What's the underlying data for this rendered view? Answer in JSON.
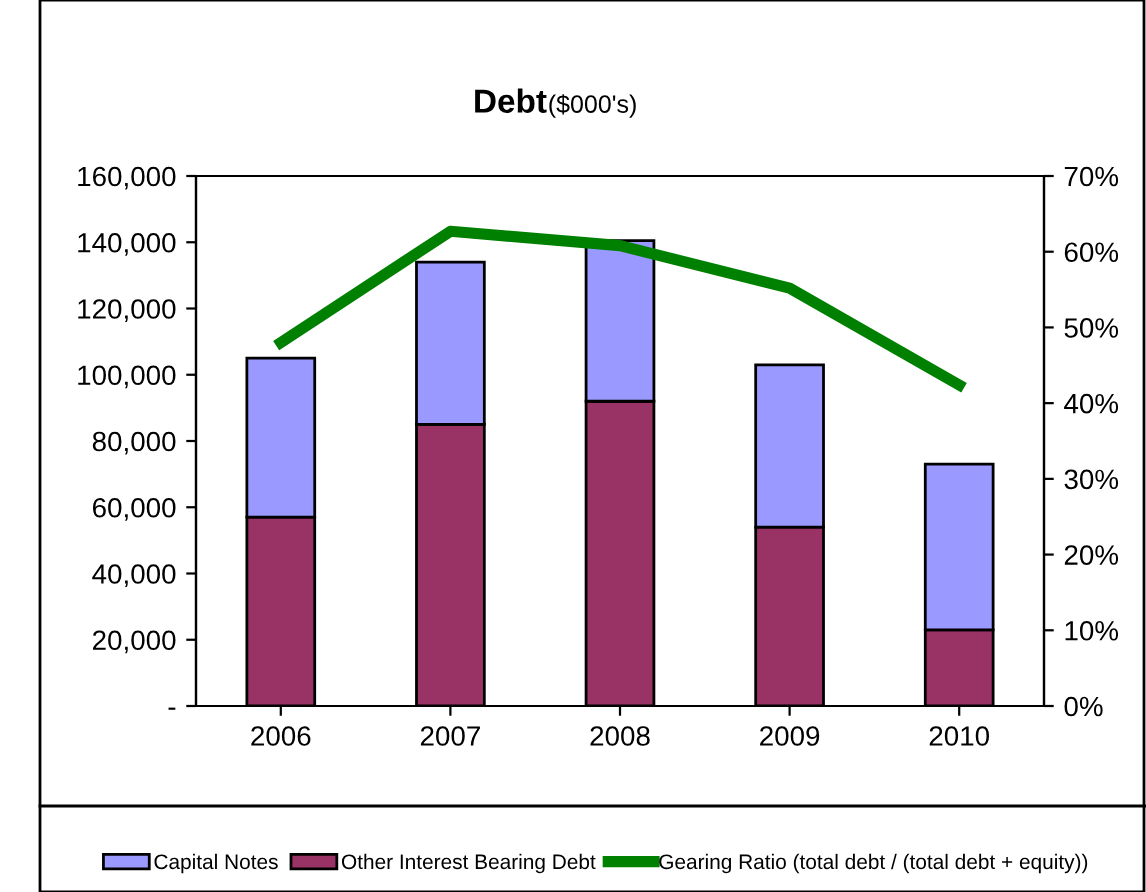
{
  "chart_data": {
    "type": "bar",
    "title": "Debt",
    "subtitle": "($000's)",
    "stacked": true,
    "categories": [
      "2006",
      "2007",
      "2008",
      "2009",
      "2010"
    ],
    "series": [
      {
        "name": "Other Interest Bearing Debt",
        "color": "#993366",
        "values": [
          57000,
          85000,
          92000,
          54000,
          23000
        ]
      },
      {
        "name": "Capital Notes",
        "color": "#9999ff",
        "values": [
          48000,
          49000,
          48500,
          49000,
          50000
        ]
      },
      {
        "name": "Gearing Ratio (total debt / (total debt + equity))",
        "type": "line",
        "axis": "y2",
        "color": "#008000",
        "values": [
          48,
          62.7,
          60.8,
          55.2,
          42.4
        ]
      }
    ],
    "ylim": [
      0,
      160000
    ],
    "yticks": [
      {
        "value": 0,
        "label": "-"
      },
      {
        "value": 20000,
        "label": "20,000"
      },
      {
        "value": 40000,
        "label": "40,000"
      },
      {
        "value": 60000,
        "label": "60,000"
      },
      {
        "value": 80000,
        "label": "80,000"
      },
      {
        "value": 100000,
        "label": "100,000"
      },
      {
        "value": 120000,
        "label": "120,000"
      },
      {
        "value": 140000,
        "label": "140,000"
      },
      {
        "value": 160000,
        "label": "160,000"
      }
    ],
    "y2lim": [
      0,
      70
    ],
    "y2ticks": [
      {
        "value": 0,
        "label": "0%"
      },
      {
        "value": 10,
        "label": "10%"
      },
      {
        "value": 20,
        "label": "20%"
      },
      {
        "value": 30,
        "label": "30%"
      },
      {
        "value": 40,
        "label": "40%"
      },
      {
        "value": 50,
        "label": "50%"
      },
      {
        "value": 60,
        "label": "60%"
      },
      {
        "value": 70,
        "label": "70%"
      }
    ],
    "grid": false,
    "legend": "bottom",
    "marker": "none",
    "line_style": "solid"
  }
}
